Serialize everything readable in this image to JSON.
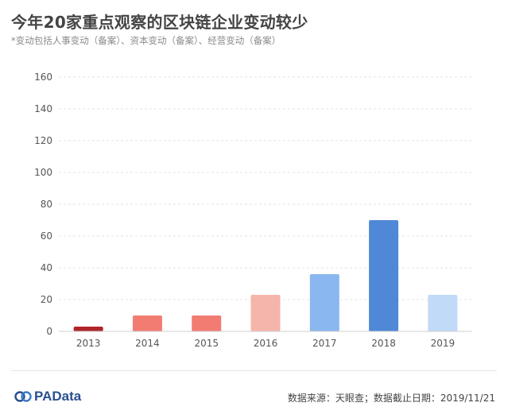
{
  "header": {
    "title": "今年20家重点观察的区块链企业变动较少",
    "subtitle": "*变动包括人事变动（备案）、资本变动（备案）、经营变动（备案）"
  },
  "footer": {
    "logo_text": "PAData",
    "source": "数据来源：天眼查；数据截止日期：2019/11/21"
  },
  "chart_data": {
    "type": "bar",
    "title": "今年20家重点观察的区块链企业变动较少",
    "subtitle": "*变动包括人事变动（备案）、资本变动（备案）、经营变动（备案）",
    "xlabel": "",
    "ylabel": "",
    "categories": [
      "2013",
      "2014",
      "2015",
      "2016",
      "2017",
      "2018",
      "2019"
    ],
    "values": [
      3,
      10,
      10,
      23,
      36,
      70,
      23
    ],
    "colors": [
      "#b0252a",
      "#f27c72",
      "#f27c72",
      "#f6b5aa",
      "#8ab7ef",
      "#4f88d6",
      "#c0daf8"
    ],
    "ylim": [
      0,
      160
    ],
    "yticks": [
      0,
      20,
      40,
      60,
      80,
      100,
      120,
      140,
      160
    ],
    "grid": true,
    "legend": "none"
  }
}
